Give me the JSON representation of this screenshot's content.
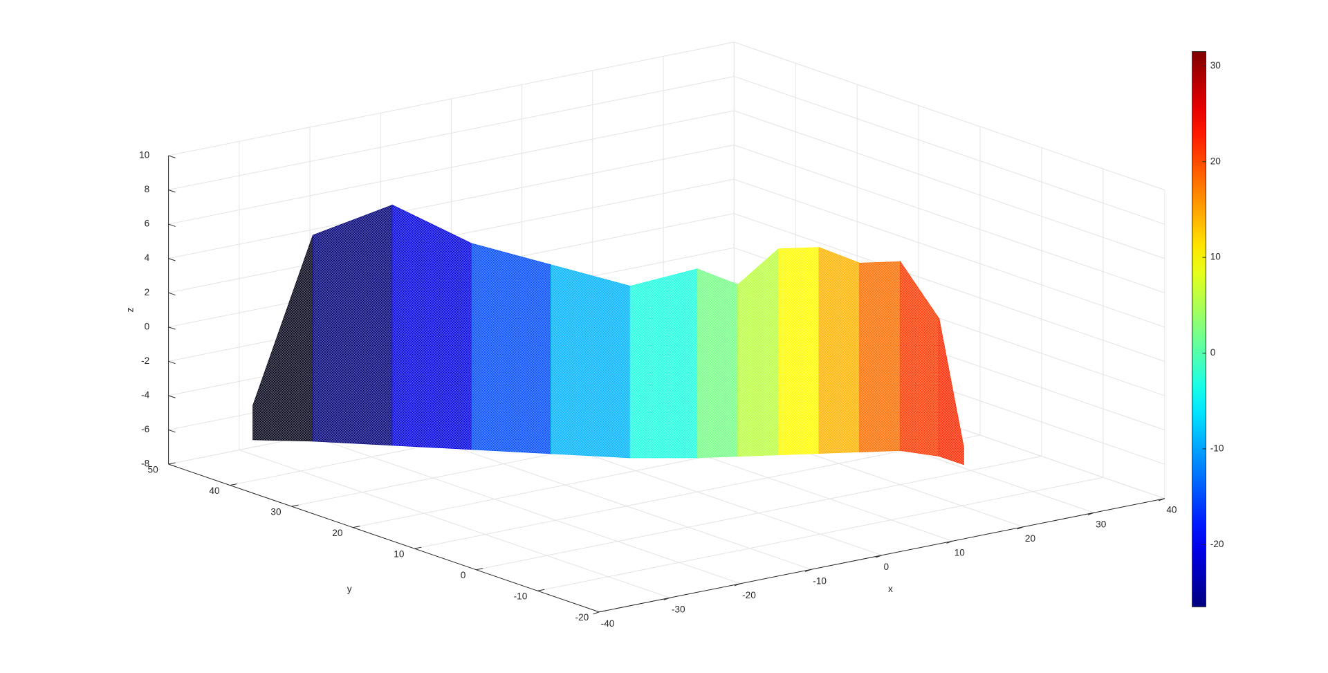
{
  "chart_data": {
    "type": "surface3d",
    "colormap": "jet",
    "grid": true,
    "xlabel": "x",
    "ylabel": "y",
    "zlabel": "z",
    "xlim": [
      -40,
      40
    ],
    "ylim": [
      -20,
      50
    ],
    "zlim": [
      -8,
      10
    ],
    "xticks": [
      -40,
      -30,
      -20,
      -10,
      0,
      10,
      20,
      30,
      40
    ],
    "yticks": [
      -20,
      -10,
      0,
      10,
      20,
      30,
      40,
      50
    ],
    "zticks": [
      -8,
      -6,
      -4,
      -2,
      0,
      2,
      4,
      6,
      8,
      10
    ],
    "clim": [
      -26.5,
      31.5
    ],
    "cticks": [
      -20,
      -10,
      0,
      10,
      20,
      30
    ],
    "surface": {
      "x": [
        -35,
        -30,
        -24,
        -18,
        -12,
        -6,
        0,
        4,
        8,
        12,
        16,
        20,
        22,
        22
      ],
      "y": [
        42,
        38,
        32,
        26,
        20,
        14,
        10,
        8,
        6,
        4,
        2,
        0,
        -4,
        -8
      ],
      "z": [
        -4,
        6,
        8,
        6,
        5,
        4,
        5,
        4,
        6,
        6,
        5,
        5,
        2,
        -5
      ],
      "zbase": -6
    }
  }
}
